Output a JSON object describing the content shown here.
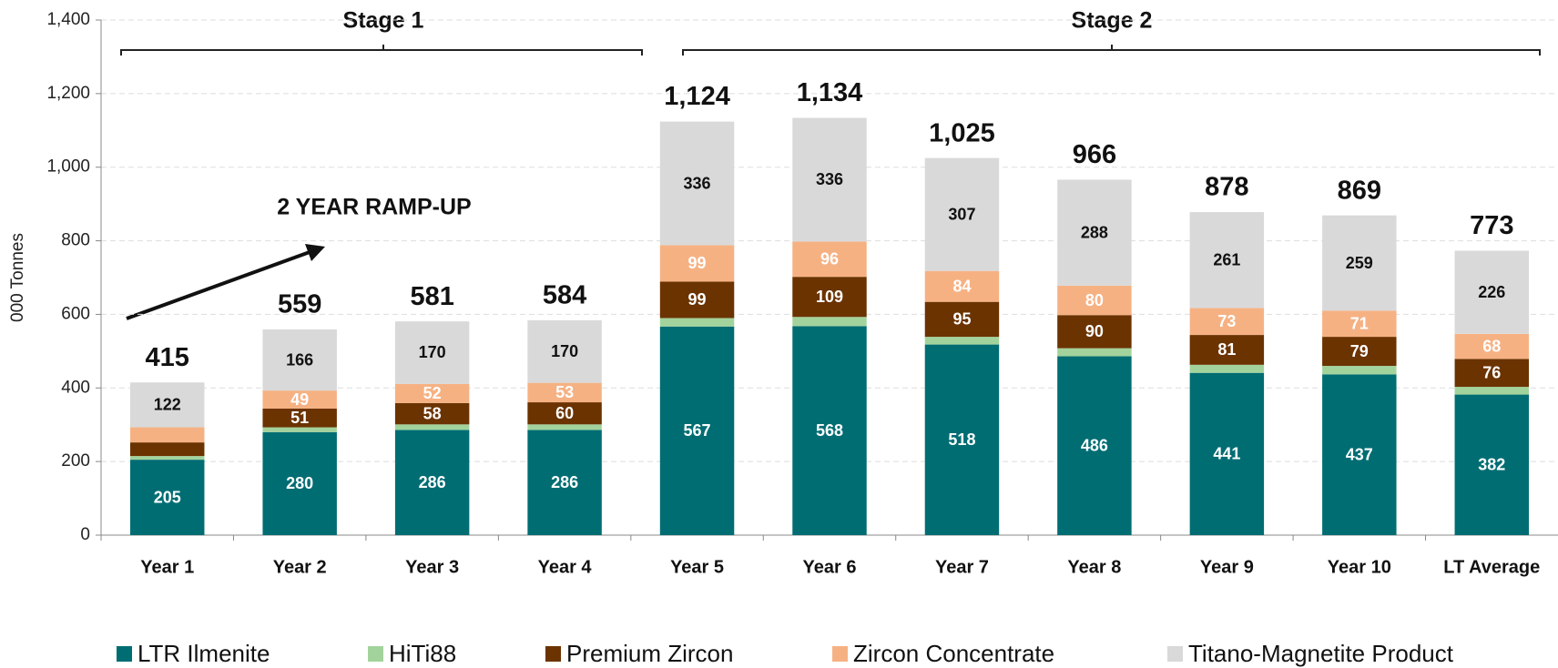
{
  "chart_data": {
    "type": "stacked_bar",
    "y_axis_label": "000 Tonnes",
    "annotations": {
      "stages": [
        "Stage 1",
        "Stage 2"
      ],
      "ramp_up": "2 YEAR RAMP-UP"
    },
    "categories": [
      "Year 1",
      "Year 2",
      "Year 3",
      "Year 4",
      "Year 5",
      "Year 6",
      "Year 7",
      "Year 8",
      "Year 9",
      "Year 10",
      "LT Average"
    ],
    "series": [
      {
        "name": "LTR Ilmenite",
        "color": "#006d73",
        "label_color": "#ffffff",
        "values": [
          205,
          280,
          286,
          286,
          567,
          568,
          518,
          486,
          441,
          437,
          382
        ],
        "value_labels": [
          "205",
          "280",
          "286",
          "286",
          "567",
          "568",
          "518",
          "486",
          "441",
          "437",
          "382"
        ]
      },
      {
        "name": "HiTi88",
        "color": "#a3d39c",
        "label_color": "#ffffff",
        "values": [
          10,
          13,
          15,
          15,
          23,
          25,
          21,
          22,
          22,
          23,
          21
        ],
        "value_labels": [
          null,
          null,
          null,
          null,
          null,
          null,
          null,
          null,
          null,
          null,
          null
        ]
      },
      {
        "name": "Premium Zircon",
        "color": "#6b3300",
        "label_color": "#ffffff",
        "values": [
          37,
          51,
          58,
          60,
          99,
          109,
          95,
          90,
          81,
          79,
          76
        ],
        "value_labels": [
          null,
          "51",
          "58",
          "60",
          "99",
          "109",
          "95",
          "90",
          "81",
          "79",
          "76"
        ]
      },
      {
        "name": "Zircon Concentrate",
        "color": "#f6b183",
        "label_color": "#ffffff",
        "values": [
          41,
          49,
          52,
          53,
          99,
          96,
          84,
          80,
          73,
          71,
          68
        ],
        "value_labels": [
          null,
          "49",
          "52",
          "53",
          "99",
          "96",
          "84",
          "80",
          "73",
          "71",
          "68"
        ]
      },
      {
        "name": "Titano-Magnetite Product",
        "color": "#d9d9d9",
        "label_color": "#111111",
        "values": [
          122,
          166,
          170,
          170,
          336,
          336,
          307,
          288,
          261,
          259,
          226
        ],
        "value_labels": [
          "122",
          "166",
          "170",
          "170",
          "336",
          "336",
          "307",
          "288",
          "261",
          "259",
          "226"
        ]
      }
    ],
    "totals": {
      "values": [
        415,
        559,
        581,
        584,
        1124,
        1134,
        1025,
        966,
        878,
        869,
        773
      ],
      "value_labels": [
        "415",
        "559",
        "581",
        "584",
        "1,124",
        "1,134",
        "1,025",
        "966",
        "878",
        "869",
        "773"
      ]
    },
    "ylim": [
      0,
      1400
    ],
    "yticks": [
      0,
      200,
      400,
      600,
      800,
      {
        "value": 1000,
        "label": "1,000"
      },
      {
        "value": 1200,
        "label": "1,200"
      },
      {
        "value": 1400,
        "label": "1,400"
      }
    ],
    "grid": true,
    "legend": "bottom"
  }
}
